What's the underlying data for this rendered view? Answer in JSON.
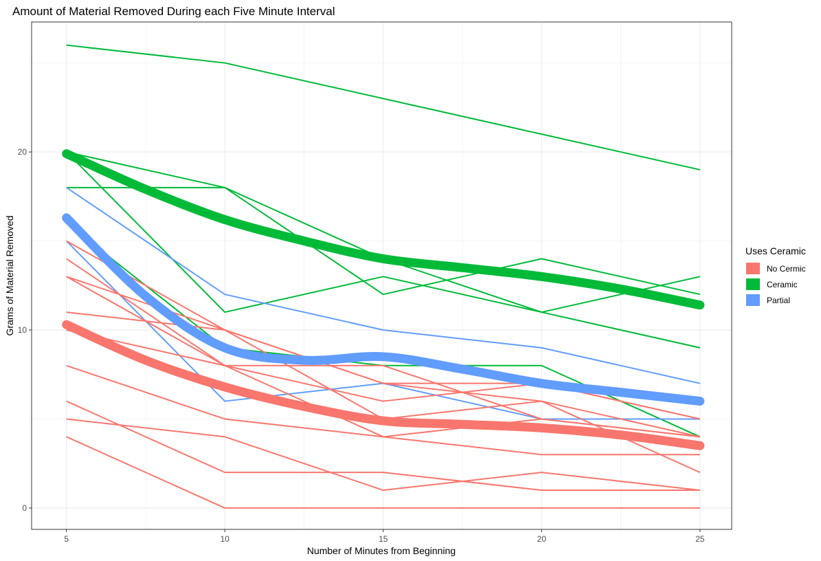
{
  "chart_data": {
    "type": "line",
    "title": "Amount of Material Removed During each Five Minute Interval",
    "xlabel": "Number of Minutes from Beginning",
    "ylabel": "Grams of Material Removed",
    "x": [
      5,
      10,
      15,
      20,
      25
    ],
    "xlim": [
      3.9,
      26.0
    ],
    "ylim": [
      -1.2,
      27.3
    ],
    "x_ticks": [
      "5",
      "10",
      "15",
      "20",
      "25"
    ],
    "y_ticks": [
      "0",
      "10",
      "20"
    ],
    "y_tick_values": [
      0,
      10,
      20
    ],
    "grid": true,
    "legend": {
      "title": "Uses Ceramic",
      "position": "right",
      "entries": [
        {
          "label": "No Cermic",
          "color": "#F8766D"
        },
        {
          "label": "Ceramic",
          "color": "#00BA38"
        },
        {
          "label": "Partial",
          "color": "#619CFF"
        }
      ]
    },
    "series": [
      {
        "group": "Ceramic",
        "color": "#00BA38",
        "values": [
          26,
          25,
          23,
          21,
          19
        ]
      },
      {
        "group": "Ceramic",
        "color": "#00BA38",
        "values": [
          20,
          18,
          14,
          11,
          9
        ]
      },
      {
        "group": "Ceramic",
        "color": "#00BA38",
        "values": [
          18,
          18,
          12,
          14,
          12
        ]
      },
      {
        "group": "Ceramic",
        "color": "#00BA38",
        "values": [
          20,
          11,
          13,
          11,
          13
        ]
      },
      {
        "group": "Ceramic",
        "color": "#00BA38",
        "values": [
          16,
          9,
          8,
          8,
          4
        ]
      },
      {
        "group": "Partial",
        "color": "#619CFF",
        "values": [
          18,
          12,
          10,
          9,
          7
        ]
      },
      {
        "group": "Partial",
        "color": "#619CFF",
        "values": [
          15,
          6,
          7,
          5,
          5
        ]
      },
      {
        "group": "No Cermic",
        "color": "#F8766D",
        "values": [
          15,
          10,
          7,
          7,
          5
        ]
      },
      {
        "group": "No Cermic",
        "color": "#F8766D",
        "values": [
          14,
          8,
          6,
          7,
          5
        ]
      },
      {
        "group": "No Cermic",
        "color": "#F8766D",
        "values": [
          13,
          10,
          7,
          6,
          4
        ]
      },
      {
        "group": "No Cermic",
        "color": "#F8766D",
        "values": [
          13,
          8,
          8,
          5,
          4
        ]
      },
      {
        "group": "No Cermic",
        "color": "#F8766D",
        "values": [
          11,
          10,
          5,
          6,
          2
        ]
      },
      {
        "group": "No Cermic",
        "color": "#F8766D",
        "values": [
          10,
          8,
          4,
          5,
          4
        ]
      },
      {
        "group": "No Cermic",
        "color": "#F8766D",
        "values": [
          8,
          5,
          4,
          3,
          3
        ]
      },
      {
        "group": "No Cermic",
        "color": "#F8766D",
        "values": [
          6,
          2,
          2,
          1,
          1
        ]
      },
      {
        "group": "No Cermic",
        "color": "#F8766D",
        "values": [
          5,
          4,
          1,
          2,
          1
        ]
      },
      {
        "group": "No Cermic",
        "color": "#F8766D",
        "values": [
          4,
          0,
          0,
          0,
          0
        ]
      }
    ],
    "smooth_lines": [
      {
        "group": "Ceramic",
        "color": "#00BA38",
        "x": [
          5,
          7.5,
          10,
          12.5,
          15,
          17.5,
          20,
          22.5,
          25
        ],
        "values": [
          19.9,
          17.9,
          16.2,
          15.0,
          14.0,
          13.5,
          13.0,
          12.3,
          11.4
        ]
      },
      {
        "group": "Partial",
        "color": "#619CFF",
        "x": [
          5,
          7.5,
          10,
          12.5,
          15,
          17.5,
          20,
          22.5,
          25
        ],
        "values": [
          16.3,
          11.9,
          9.0,
          8.3,
          8.5,
          7.8,
          7.0,
          6.5,
          6.0
        ]
      },
      {
        "group": "No Cermic",
        "color": "#F8766D",
        "x": [
          5,
          7.5,
          10,
          12.5,
          15,
          17.5,
          20,
          22.5,
          25
        ],
        "values": [
          10.3,
          8.3,
          6.8,
          5.7,
          4.9,
          4.7,
          4.5,
          4.1,
          3.5
        ]
      }
    ]
  }
}
